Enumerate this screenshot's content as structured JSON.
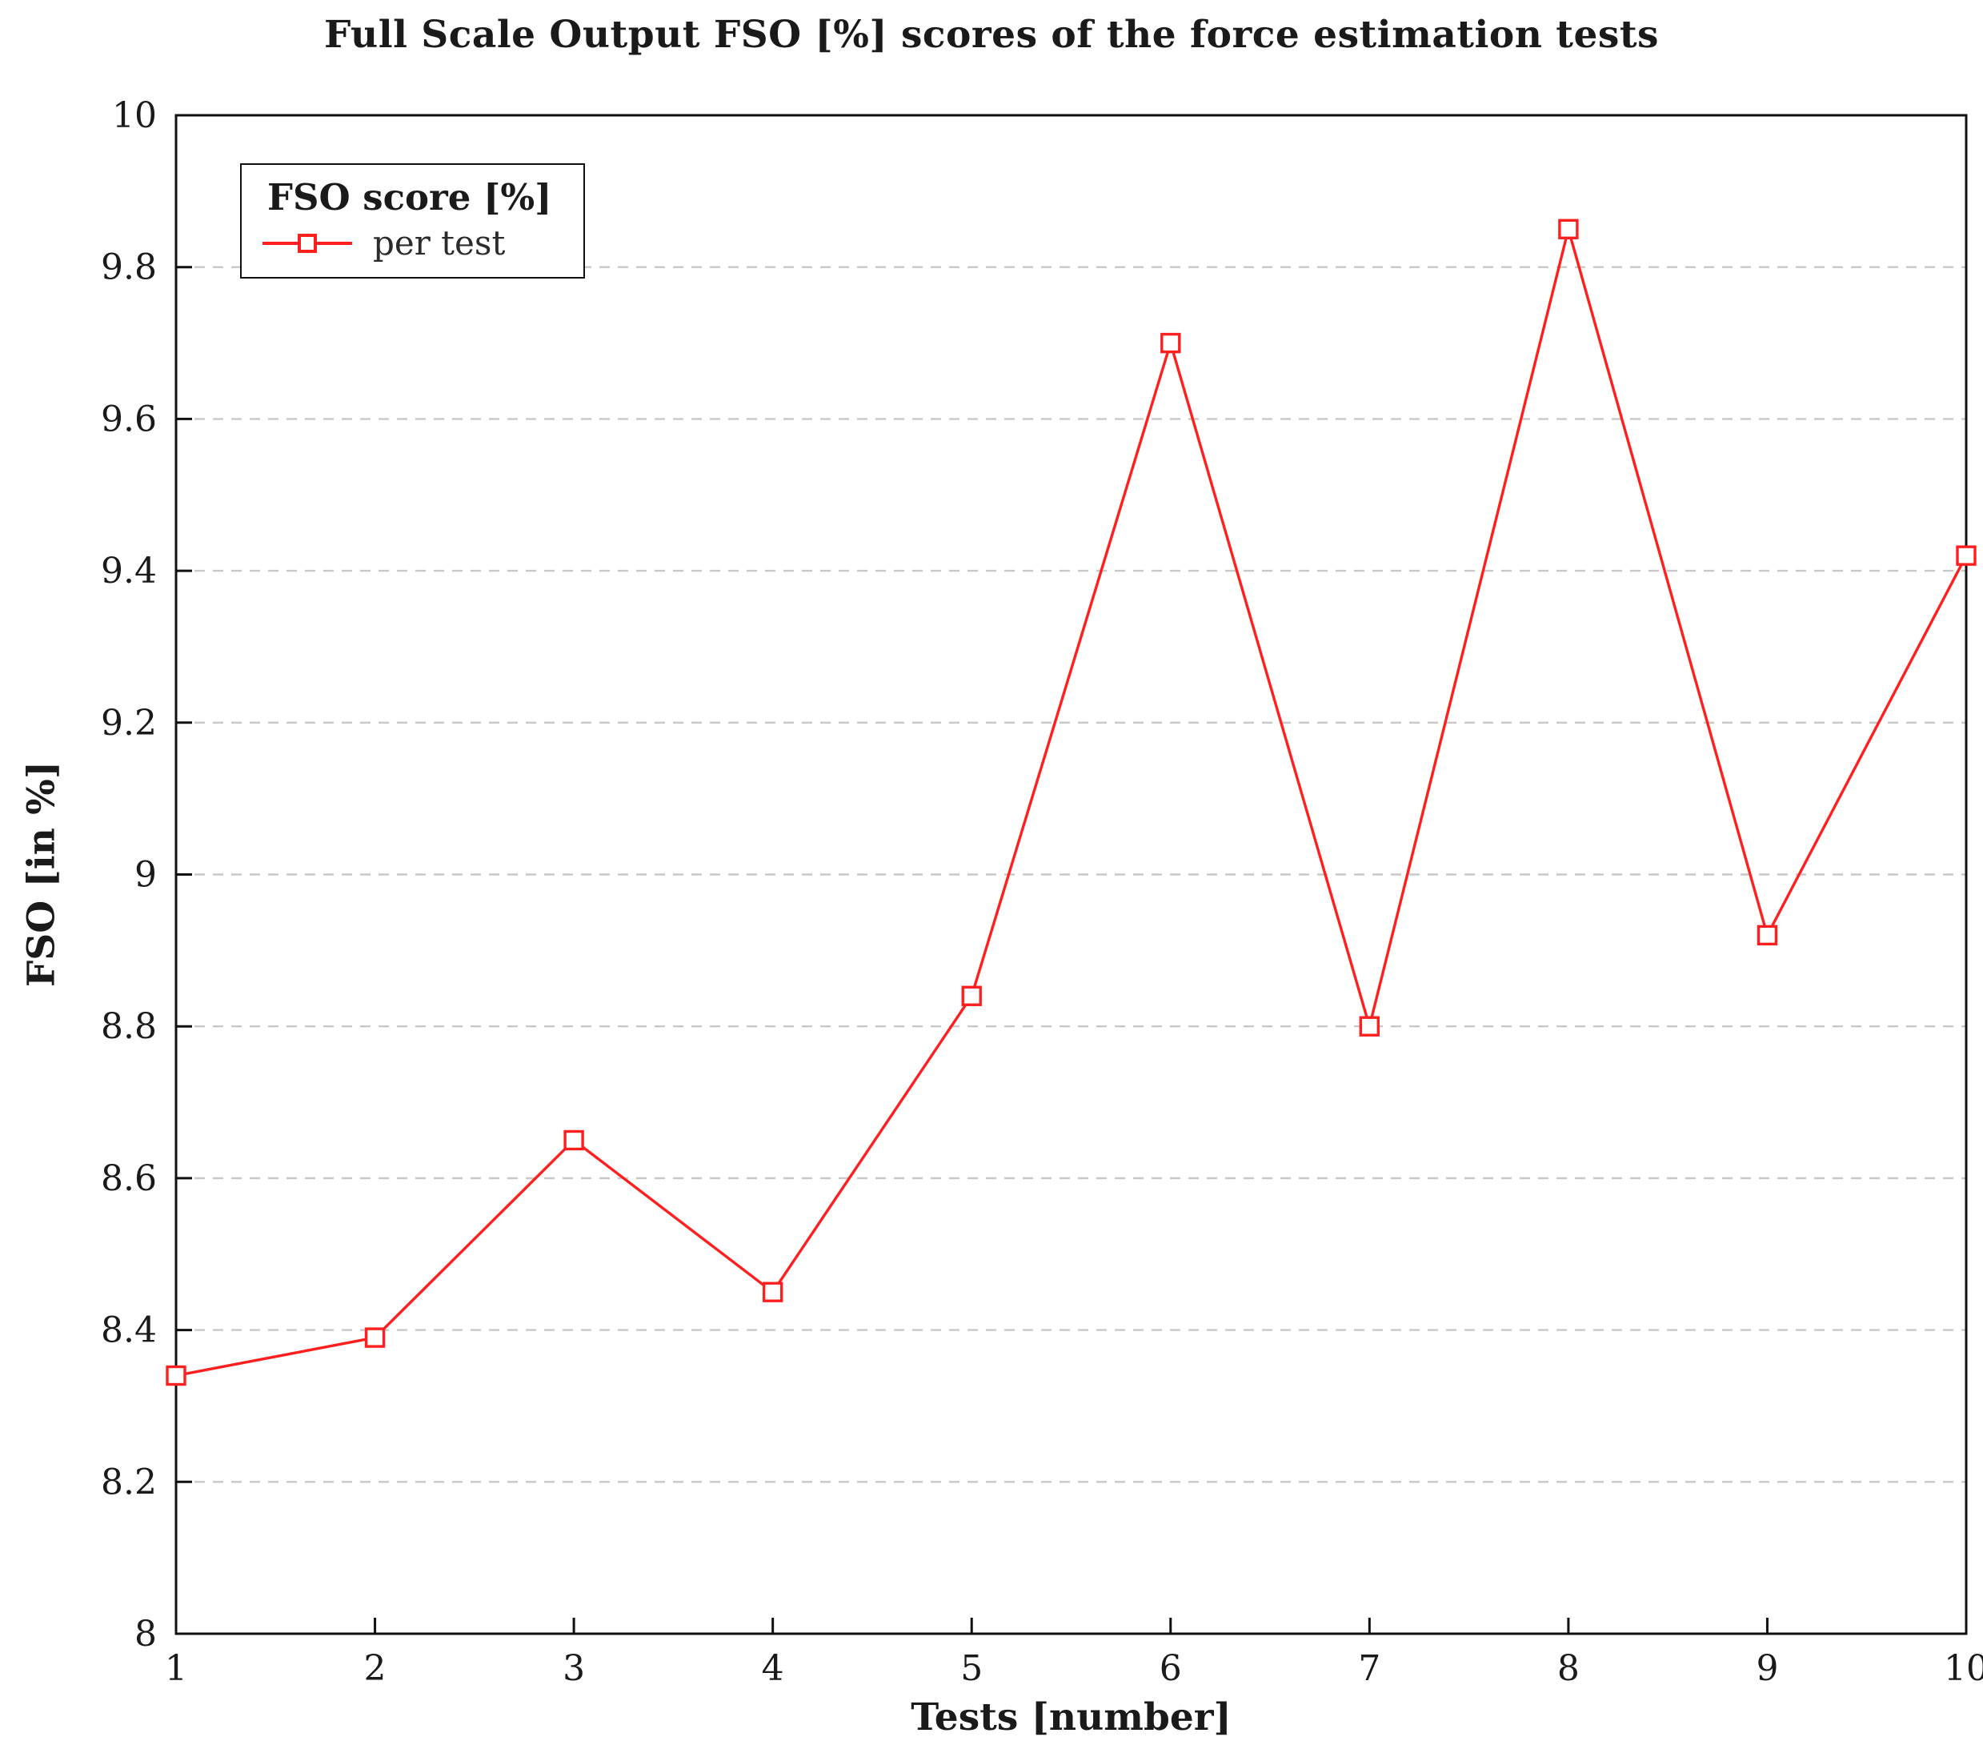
{
  "figure": {
    "title": "Full Scale Output FSO [%] scores of the force estimation tests"
  },
  "chart_data": {
    "type": "line",
    "title": "Full Scale Output FSO [%] scores of the force estimation tests",
    "xlabel": "Tests [number]",
    "ylabel": "FSO [in %]",
    "x": [
      1,
      2,
      3,
      4,
      5,
      6,
      7,
      8,
      9,
      10
    ],
    "series": [
      {
        "name": "per test",
        "values": [
          8.34,
          8.39,
          8.65,
          8.45,
          8.84,
          9.7,
          8.8,
          9.85,
          8.92,
          9.42
        ]
      }
    ],
    "legend": {
      "title": "FSO score [%]",
      "entry": "per test",
      "position": "top-left"
    },
    "xlim": [
      1,
      10
    ],
    "ylim": [
      8,
      10
    ],
    "xtick_step": 1,
    "ytick_step": 0.2,
    "grid": "horizontal-dashed",
    "grid_color": "#c8c8c8",
    "axis_color": "#111111",
    "line_color": "#ff1f1f",
    "marker": "open-square",
    "marker_fill": "#ffffff"
  }
}
